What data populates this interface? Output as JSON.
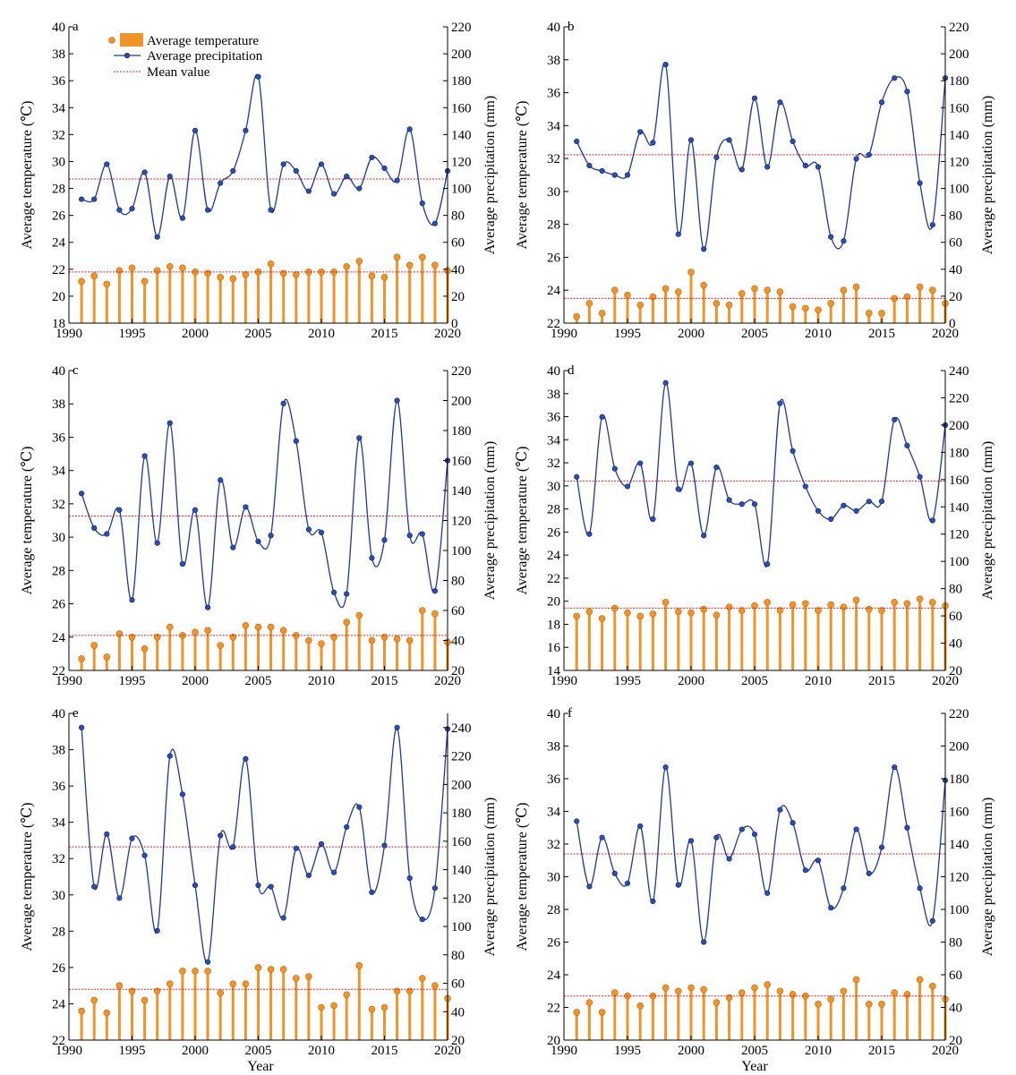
{
  "figure": {
    "xlabel": "Year",
    "legend": {
      "temperature": "Average temperature",
      "precipitation": "Average precipitation",
      "mean": "Mean value"
    },
    "colors": {
      "bar": "#f0942a",
      "line": "#1f3a8f",
      "mean": "#e02020"
    }
  },
  "chart_data": [
    {
      "type": "bar+line",
      "panel": "a",
      "ylabel_left": "Average temperature (℃)",
      "ylabel_right": "Average precipitation (mm)",
      "xlim": [
        1990,
        2020
      ],
      "x_ticks": [
        1990,
        1995,
        2000,
        2005,
        2010,
        2015,
        2020
      ],
      "ylim_left": [
        18,
        40
      ],
      "left_ticks": [
        18,
        20,
        22,
        24,
        26,
        28,
        30,
        32,
        34,
        36,
        38,
        40
      ],
      "ylim_right": [
        0,
        220
      ],
      "right_ticks": [
        0,
        20,
        40,
        60,
        80,
        100,
        120,
        140,
        160,
        180,
        200,
        220
      ],
      "years": [
        1991,
        1992,
        1993,
        1994,
        1995,
        1996,
        1997,
        1998,
        1999,
        2000,
        2001,
        2002,
        2003,
        2004,
        2005,
        2006,
        2007,
        2008,
        2009,
        2010,
        2011,
        2012,
        2013,
        2014,
        2015,
        2016,
        2017,
        2018,
        2019,
        2020
      ],
      "temperature": [
        21.1,
        21.5,
        20.9,
        21.9,
        22.1,
        21.1,
        21.9,
        22.2,
        22.1,
        21.8,
        21.7,
        21.4,
        21.3,
        21.6,
        21.8,
        22.4,
        21.7,
        21.6,
        21.8,
        21.8,
        21.8,
        22.2,
        22.6,
        21.5,
        21.4,
        22.9,
        22.3,
        22.9,
        22.3,
        21.9
      ],
      "temperature_mean": 21.8,
      "precipitation": [
        92,
        92,
        118,
        84,
        85,
        112,
        64,
        109,
        78,
        143,
        84,
        104,
        113,
        143,
        183,
        84,
        118,
        113,
        98,
        118,
        96,
        109,
        100,
        123,
        115,
        106,
        144,
        89,
        74,
        113
      ],
      "precipitation_mean": 107
    },
    {
      "type": "bar+line",
      "panel": "b",
      "ylabel_left": "Average temperature (℃)",
      "ylabel_right": "Average precipitation (mm)",
      "xlim": [
        1990,
        2020
      ],
      "x_ticks": [
        1990,
        1995,
        2000,
        2005,
        2010,
        2015,
        2020
      ],
      "ylim_left": [
        22,
        40
      ],
      "left_ticks": [
        22,
        24,
        26,
        28,
        30,
        32,
        34,
        36,
        38,
        40
      ],
      "ylim_right": [
        0,
        220
      ],
      "right_ticks": [
        0,
        20,
        40,
        60,
        80,
        100,
        120,
        140,
        160,
        180,
        200,
        220
      ],
      "years": [
        1991,
        1992,
        1993,
        1994,
        1995,
        1996,
        1997,
        1998,
        1999,
        2000,
        2001,
        2002,
        2003,
        2004,
        2005,
        2006,
        2007,
        2008,
        2009,
        2010,
        2011,
        2012,
        2013,
        2014,
        2015,
        2016,
        2017,
        2018,
        2019,
        2020
      ],
      "temperature": [
        22.4,
        23.2,
        22.6,
        24.0,
        23.7,
        23.1,
        23.6,
        24.1,
        23.9,
        25.1,
        24.3,
        23.2,
        23.1,
        23.8,
        24.1,
        24.0,
        23.9,
        23.0,
        22.9,
        22.8,
        23.2,
        24.0,
        24.2,
        22.6,
        22.6,
        23.5,
        23.6,
        24.2,
        24.0,
        23.2
      ],
      "temperature_mean": 23.5,
      "precipitation": [
        135,
        117,
        113,
        110,
        110,
        142,
        134,
        192,
        66,
        136,
        55,
        123,
        136,
        114,
        167,
        116,
        164,
        135,
        117,
        116,
        64,
        61,
        122,
        125,
        164,
        182,
        172,
        104,
        73,
        182
      ],
      "precipitation_mean": 125
    },
    {
      "type": "bar+line",
      "panel": "c",
      "ylabel_left": "Average temperature (℃)",
      "ylabel_right": "Average precipitation (mm)",
      "xlim": [
        1990,
        2020
      ],
      "x_ticks": [
        1990,
        1995,
        2000,
        2005,
        2010,
        2015,
        2020
      ],
      "ylim_left": [
        22,
        40
      ],
      "left_ticks": [
        22,
        24,
        26,
        28,
        30,
        32,
        34,
        36,
        38,
        40
      ],
      "ylim_right": [
        20,
        220
      ],
      "right_ticks": [
        20,
        40,
        60,
        80,
        100,
        120,
        140,
        160,
        180,
        200,
        220
      ],
      "years": [
        1991,
        1992,
        1993,
        1994,
        1995,
        1996,
        1997,
        1998,
        1999,
        2000,
        2001,
        2002,
        2003,
        2004,
        2005,
        2006,
        2007,
        2008,
        2009,
        2010,
        2011,
        2012,
        2013,
        2014,
        2015,
        2016,
        2017,
        2018,
        2019,
        2020
      ],
      "temperature": [
        22.7,
        23.5,
        22.8,
        24.2,
        24.0,
        23.3,
        24.0,
        24.6,
        24.1,
        24.3,
        24.4,
        23.5,
        24.0,
        24.7,
        24.6,
        24.6,
        24.4,
        24.1,
        23.8,
        23.6,
        24.0,
        24.9,
        25.3,
        23.8,
        24.0,
        23.9,
        23.8,
        25.6,
        25.4,
        23.7
      ],
      "temperature_mean": 24.1,
      "precipitation": [
        138,
        115,
        111,
        127,
        67,
        163,
        105,
        185,
        91,
        127,
        62,
        147,
        102,
        129,
        106,
        110,
        198,
        173,
        114,
        112,
        72,
        71,
        175,
        95,
        107,
        200,
        110,
        111,
        73,
        160
      ],
      "precipitation_mean": 123
    },
    {
      "type": "bar+line",
      "panel": "d",
      "ylabel_left": "Average temperature (℃)",
      "ylabel_right": "Average precipitation (mm)",
      "xlim": [
        1990,
        2020
      ],
      "x_ticks": [
        1990,
        1995,
        2000,
        2005,
        2010,
        2015,
        2020
      ],
      "ylim_left": [
        14,
        40
      ],
      "left_ticks": [
        14,
        16,
        18,
        20,
        22,
        24,
        26,
        28,
        30,
        32,
        34,
        36,
        38,
        40
      ],
      "ylim_right": [
        20,
        240
      ],
      "right_ticks": [
        20,
        40,
        60,
        80,
        100,
        120,
        140,
        160,
        180,
        200,
        220,
        240
      ],
      "years": [
        1991,
        1992,
        1993,
        1994,
        1995,
        1996,
        1997,
        1998,
        1999,
        2000,
        2001,
        2002,
        2003,
        2004,
        2005,
        2006,
        2007,
        2008,
        2009,
        2010,
        2011,
        2012,
        2013,
        2014,
        2015,
        2016,
        2017,
        2018,
        2019,
        2020
      ],
      "temperature": [
        18.7,
        19.1,
        18.5,
        19.4,
        19.0,
        18.7,
        18.9,
        19.9,
        19.1,
        19.0,
        19.3,
        18.8,
        19.5,
        19.2,
        19.6,
        19.9,
        19.2,
        19.7,
        19.8,
        19.2,
        19.7,
        19.5,
        20.1,
        19.3,
        19.2,
        19.9,
        19.8,
        20.2,
        19.9,
        19.6
      ],
      "temperature_mean": 19.4,
      "precipitation": [
        162,
        120,
        206,
        168,
        155,
        172,
        131,
        231,
        153,
        172,
        119,
        169,
        145,
        142,
        142,
        98,
        216,
        181,
        155,
        137,
        131,
        141,
        137,
        144,
        144,
        204,
        185,
        162,
        130,
        200
      ],
      "precipitation_mean": 159
    },
    {
      "type": "bar+line",
      "panel": "e",
      "ylabel_left": "Average temperature (℃)",
      "ylabel_right": "Average precipitation (mm)",
      "xlim": [
        1990,
        2020
      ],
      "x_ticks": [
        1990,
        1995,
        2000,
        2005,
        2010,
        2015,
        2020
      ],
      "ylim_left": [
        22,
        40
      ],
      "left_ticks": [
        22,
        24,
        26,
        28,
        30,
        32,
        34,
        36,
        38,
        40
      ],
      "ylim_right": [
        20,
        250
      ],
      "right_ticks": [
        20,
        40,
        60,
        80,
        100,
        120,
        140,
        160,
        180,
        200,
        220,
        240
      ],
      "years": [
        1991,
        1992,
        1993,
        1994,
        1995,
        1996,
        1997,
        1998,
        1999,
        2000,
        2001,
        2002,
        2003,
        2004,
        2005,
        2006,
        2007,
        2008,
        2009,
        2010,
        2011,
        2012,
        2013,
        2014,
        2015,
        2016,
        2017,
        2018,
        2019,
        2020
      ],
      "temperature": [
        23.6,
        24.2,
        23.5,
        25.0,
        24.7,
        24.2,
        24.7,
        25.1,
        25.8,
        25.8,
        25.8,
        24.6,
        25.1,
        25.1,
        26.0,
        25.9,
        25.9,
        25.4,
        25.5,
        23.8,
        23.9,
        24.5,
        26.1,
        23.7,
        23.8,
        24.7,
        24.7,
        25.4,
        25.0,
        24.3
      ],
      "temperature_mean": 24.8,
      "precipitation": [
        240,
        128,
        165,
        120,
        162,
        150,
        97,
        220,
        193,
        129,
        75,
        164,
        156,
        218,
        129,
        128,
        106,
        155,
        136,
        158,
        138,
        170,
        184,
        124,
        157,
        240,
        134,
        105,
        127,
        239
      ],
      "precipitation_mean": 156
    },
    {
      "type": "bar+line",
      "panel": "f",
      "ylabel_left": "Average temperature (℃)",
      "ylabel_right": "Average precipitation (mm)",
      "xlim": [
        1990,
        2020
      ],
      "x_ticks": [
        1990,
        1995,
        2000,
        2005,
        2010,
        2015,
        2020
      ],
      "ylim_left": [
        20,
        40
      ],
      "left_ticks": [
        20,
        22,
        24,
        26,
        28,
        30,
        32,
        34,
        36,
        38,
        40
      ],
      "ylim_right": [
        20,
        220
      ],
      "right_ticks": [
        20,
        40,
        60,
        80,
        100,
        120,
        140,
        160,
        180,
        200,
        220
      ],
      "years": [
        1991,
        1992,
        1993,
        1994,
        1995,
        1996,
        1997,
        1998,
        1999,
        2000,
        2001,
        2002,
        2003,
        2004,
        2005,
        2006,
        2007,
        2008,
        2009,
        2010,
        2011,
        2012,
        2013,
        2014,
        2015,
        2016,
        2017,
        2018,
        2019,
        2020
      ],
      "temperature": [
        21.7,
        22.3,
        21.7,
        22.9,
        22.7,
        22.1,
        22.7,
        23.2,
        23.0,
        23.2,
        23.1,
        22.3,
        22.6,
        22.9,
        23.2,
        23.4,
        23.0,
        22.8,
        22.7,
        22.2,
        22.5,
        23.0,
        23.7,
        22.2,
        22.2,
        22.9,
        22.8,
        23.7,
        23.3,
        22.5
      ],
      "temperature_mean": 22.7,
      "precipitation": [
        154,
        114,
        144,
        122,
        116,
        151,
        105,
        187,
        115,
        142,
        80,
        144,
        131,
        149,
        146,
        110,
        161,
        153,
        124,
        130,
        101,
        113,
        149,
        122,
        138,
        187,
        150,
        113,
        93,
        179
      ],
      "precipitation_mean": 134
    }
  ]
}
